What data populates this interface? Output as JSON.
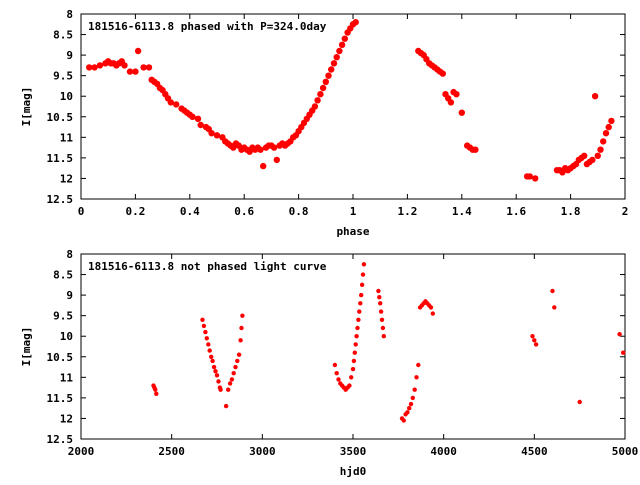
{
  "chart_data": [
    {
      "type": "scatter",
      "title": "181516-6113.8 phased with P=324.0day",
      "xlabel": "phase",
      "ylabel": "I[mag]",
      "xlim": [
        0,
        2
      ],
      "ylim": [
        12.5,
        8
      ],
      "y_reversed": true,
      "xticks": [
        "0",
        "0.2",
        "0.4",
        "0.6",
        "0.8",
        "1",
        "1.2",
        "1.4",
        "1.6",
        "1.8",
        "2"
      ],
      "yticks": [
        "8",
        "8.5",
        "9",
        "9.5",
        "10",
        "10.5",
        "11",
        "11.5",
        "12",
        "12.5"
      ],
      "grid": false,
      "legend": "none",
      "marker_color": "#ff0000",
      "series": [
        {
          "x": [
            0.03,
            0.05,
            0.07,
            0.09,
            0.1,
            0.11,
            0.12,
            0.13,
            0.14,
            0.15,
            0.16,
            0.18,
            0.2,
            0.21,
            0.23,
            0.25,
            0.26,
            0.27,
            0.28,
            0.29,
            0.3,
            0.31,
            0.32,
            0.33,
            0.35,
            0.37,
            0.38,
            0.39,
            0.4,
            0.41,
            0.43,
            0.44,
            0.46,
            0.47,
            0.48,
            0.5,
            0.52,
            0.53,
            0.54,
            0.55,
            0.56,
            0.57,
            0.58,
            0.59,
            0.6,
            0.61,
            0.62,
            0.63,
            0.64,
            0.65,
            0.66,
            0.67,
            0.68,
            0.69,
            0.7,
            0.71,
            0.72,
            0.73,
            0.74,
            0.75,
            0.76,
            0.77,
            0.78,
            0.79,
            0.8,
            0.81,
            0.82,
            0.83,
            0.84,
            0.85,
            0.86,
            0.87,
            0.88,
            0.89,
            0.9,
            0.91,
            0.92,
            0.93,
            0.94,
            0.95,
            0.96,
            0.97,
            0.98,
            0.99,
            1.0,
            1.01,
            1.24,
            1.25,
            1.26,
            1.27,
            1.28,
            1.29,
            1.3,
            1.31,
            1.32,
            1.33,
            1.34,
            1.35,
            1.36,
            1.37,
            1.38,
            1.4,
            1.42,
            1.43,
            1.44,
            1.45,
            1.64,
            1.65,
            1.67,
            1.75,
            1.76,
            1.77,
            1.78,
            1.79,
            1.8,
            1.81,
            1.82,
            1.83,
            1.84,
            1.85,
            1.86,
            1.87,
            1.88,
            1.89,
            1.9,
            1.91,
            1.92,
            1.93,
            1.94,
            1.95
          ],
          "y": [
            9.3,
            9.3,
            9.25,
            9.2,
            9.15,
            9.2,
            9.2,
            9.25,
            9.2,
            9.15,
            9.25,
            9.4,
            9.4,
            8.9,
            9.3,
            9.3,
            9.6,
            9.65,
            9.7,
            9.8,
            9.85,
            9.95,
            10.05,
            10.15,
            10.2,
            10.3,
            10.35,
            10.4,
            10.45,
            10.5,
            10.55,
            10.7,
            10.75,
            10.8,
            10.9,
            10.95,
            11.0,
            11.1,
            11.15,
            11.2,
            11.25,
            11.15,
            11.2,
            11.3,
            11.25,
            11.3,
            11.35,
            11.25,
            11.3,
            11.25,
            11.3,
            11.7,
            11.25,
            11.2,
            11.2,
            11.25,
            11.55,
            11.2,
            11.15,
            11.2,
            11.15,
            11.1,
            11.0,
            10.95,
            10.85,
            10.75,
            10.65,
            10.55,
            10.45,
            10.35,
            10.25,
            10.1,
            9.95,
            9.8,
            9.65,
            9.5,
            9.35,
            9.2,
            9.05,
            8.9,
            8.75,
            8.6,
            8.45,
            8.35,
            8.25,
            8.2,
            8.9,
            8.95,
            9.0,
            9.1,
            9.2,
            9.25,
            9.3,
            9.35,
            9.4,
            9.45,
            9.95,
            10.05,
            10.15,
            9.9,
            9.95,
            10.4,
            11.2,
            11.25,
            11.3,
            11.3,
            11.95,
            11.95,
            12.0,
            11.8,
            11.8,
            11.85,
            11.75,
            11.8,
            11.75,
            11.7,
            11.65,
            11.55,
            11.5,
            11.45,
            11.65,
            11.6,
            11.55,
            10.0,
            11.45,
            11.3,
            11.1,
            10.9,
            10.75,
            10.6
          ]
        }
      ]
    },
    {
      "type": "scatter",
      "title": "181516-6113.8 not phased light curve",
      "xlabel": "hjd0",
      "ylabel": "I[mag]",
      "xlim": [
        2000,
        5000
      ],
      "ylim": [
        12.5,
        8
      ],
      "y_reversed": true,
      "xticks": [
        "2000",
        "2500",
        "3000",
        "3500",
        "4000",
        "4500",
        "5000"
      ],
      "yticks": [
        "8",
        "8.5",
        "9",
        "9.5",
        "10",
        "10.5",
        "11",
        "11.5",
        "12",
        "12.5"
      ],
      "grid": false,
      "legend": "none",
      "marker_color": "#ff0000",
      "series": [
        {
          "x": [
            2400,
            2405,
            2410,
            2415,
            2670,
            2678,
            2686,
            2694,
            2702,
            2710,
            2718,
            2726,
            2734,
            2742,
            2750,
            2758,
            2766,
            2770,
            2800,
            2812,
            2822,
            2832,
            2842,
            2852,
            2862,
            2872,
            2880,
            2885,
            2890,
            3400,
            3410,
            3420,
            3430,
            3440,
            3450,
            3460,
            3470,
            3480,
            3490,
            3500,
            3505,
            3510,
            3515,
            3520,
            3525,
            3530,
            3535,
            3540,
            3545,
            3550,
            3555,
            3560,
            3640,
            3645,
            3650,
            3655,
            3660,
            3665,
            3670,
            3770,
            3780,
            3790,
            3800,
            3810,
            3820,
            3830,
            3840,
            3850,
            3860,
            3870,
            3880,
            3890,
            3900,
            3910,
            3920,
            3930,
            3940,
            4490,
            4500,
            4510,
            4600,
            4610,
            4750,
            4970,
            4990
          ],
          "y": [
            11.2,
            11.25,
            11.3,
            11.4,
            9.6,
            9.75,
            9.9,
            10.05,
            10.2,
            10.35,
            10.5,
            10.6,
            10.75,
            10.85,
            10.95,
            11.1,
            11.25,
            11.3,
            11.7,
            11.3,
            11.15,
            11.05,
            10.9,
            10.75,
            10.6,
            10.45,
            10.1,
            9.8,
            9.5,
            10.7,
            10.9,
            11.05,
            11.15,
            11.2,
            11.25,
            11.3,
            11.25,
            11.2,
            11.0,
            10.8,
            10.6,
            10.4,
            10.2,
            10.0,
            9.8,
            9.6,
            9.4,
            9.2,
            9.0,
            8.75,
            8.5,
            8.25,
            8.9,
            9.05,
            9.2,
            9.4,
            9.6,
            9.8,
            10.0,
            12.0,
            12.05,
            11.9,
            11.85,
            11.75,
            11.65,
            11.5,
            11.3,
            11.0,
            10.7,
            9.3,
            9.25,
            9.2,
            9.15,
            9.2,
            9.25,
            9.3,
            9.45,
            10.0,
            10.1,
            10.2,
            8.9,
            9.3,
            11.6,
            9.95,
            10.4
          ]
        }
      ]
    }
  ]
}
